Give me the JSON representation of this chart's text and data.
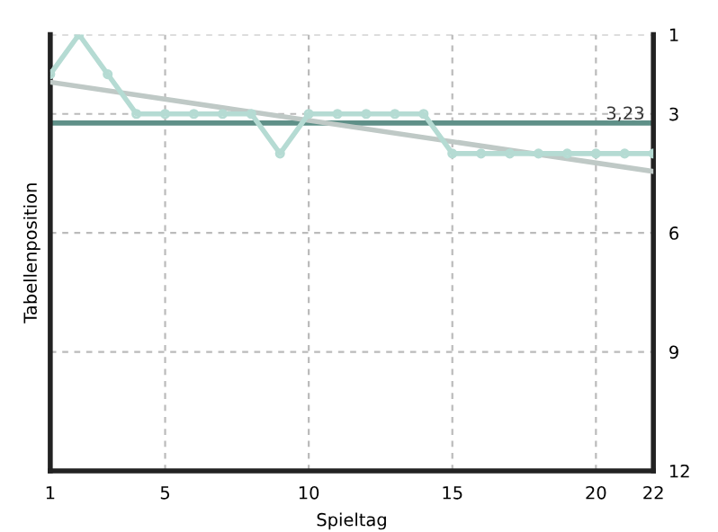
{
  "chart_data": {
    "type": "line",
    "xlabel": "Spieltag",
    "ylabel": "Tabellenposition",
    "x": [
      1,
      2,
      3,
      4,
      5,
      6,
      7,
      8,
      9,
      10,
      11,
      12,
      13,
      14,
      15,
      16,
      17,
      18,
      19,
      20,
      21,
      22
    ],
    "series": [
      {
        "color": "#b5dbd3",
        "marker": "circle",
        "values": [
          2,
          1,
          2,
          3,
          3,
          3,
          3,
          3,
          4,
          3,
          3,
          3,
          3,
          3,
          4,
          4,
          4,
          4,
          4,
          4,
          4,
          4
        ]
      },
      {
        "color": "#bfc9c6",
        "marker": "none",
        "x": [
          1,
          22
        ],
        "values": [
          2.2,
          4.45
        ]
      }
    ],
    "ref_lines": [
      {
        "axis": "y",
        "value": 3.23,
        "label": "3,23",
        "color": "#5f9088"
      }
    ],
    "xlim": [
      1,
      22
    ],
    "xticks": [
      1,
      5,
      10,
      15,
      20,
      22
    ],
    "ylim": [
      12,
      1
    ],
    "yticks": [
      1,
      3,
      6,
      9,
      12
    ],
    "grid": true,
    "line_style": "solid"
  }
}
